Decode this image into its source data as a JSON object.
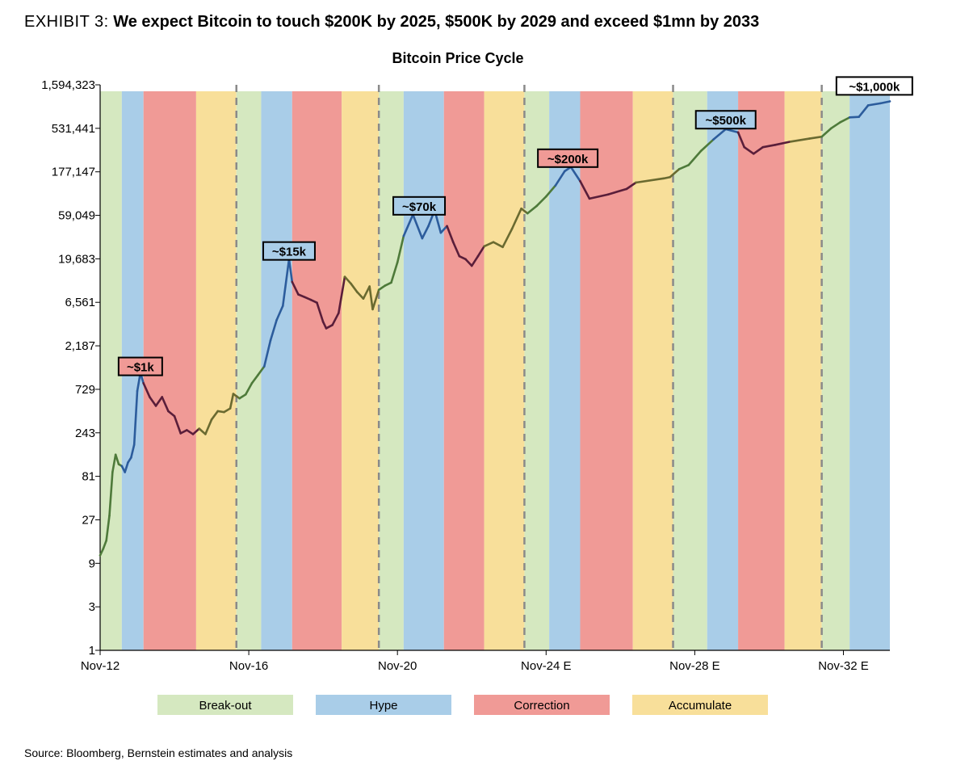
{
  "exhibit": {
    "label": "EXHIBIT 3:",
    "title": "We expect Bitcoin to touch $200K by 2025, $500K by 2029 and exceed $1mn by 2033"
  },
  "source": "Source: Bloomberg, Bernstein estimates and analysis",
  "chart_data": {
    "type": "line",
    "title": "Bitcoin Price Cycle",
    "xlabel": "",
    "ylabel": "",
    "y_scale": "log3",
    "ylim": [
      1,
      1594323
    ],
    "y_ticks": [
      {
        "value": 1,
        "label": "1"
      },
      {
        "value": 3,
        "label": "3"
      },
      {
        "value": 9,
        "label": "9"
      },
      {
        "value": 27,
        "label": "27"
      },
      {
        "value": 81,
        "label": "81"
      },
      {
        "value": 243,
        "label": "243"
      },
      {
        "value": 729,
        "label": "729"
      },
      {
        "value": 2187,
        "label": "2,187"
      },
      {
        "value": 6561,
        "label": "6,561"
      },
      {
        "value": 19683,
        "label": "19,683"
      },
      {
        "value": 59049,
        "label": "59,049"
      },
      {
        "value": 177147,
        "label": "177,147"
      },
      {
        "value": 531441,
        "label": "531,441"
      },
      {
        "value": 1594323,
        "label": "1,594,323"
      }
    ],
    "xlim": [
      "2012-11",
      "2034-02"
    ],
    "x_ticks": [
      {
        "value": "2012-11",
        "label": "Nov-12"
      },
      {
        "value": "2016-11",
        "label": "Nov-16"
      },
      {
        "value": "2020-11",
        "label": "Nov-20"
      },
      {
        "value": "2024-11",
        "label": "Nov-24 E"
      },
      {
        "value": "2028-11",
        "label": "Nov-28 E"
      },
      {
        "value": "2032-11",
        "label": "Nov-32 E"
      }
    ],
    "halving_lines": [
      "2016-07",
      "2020-05",
      "2024-04",
      "2028-04",
      "2032-04"
    ],
    "phase_colors": {
      "Break-out": "#d5e8c0",
      "Hype": "#a9cde8",
      "Correction": "#f09a96",
      "Accumulate": "#f8df9a"
    },
    "line_colors": {
      "Break-out": "#4e7a3a",
      "Hype": "#2c5c9c",
      "Correction": "#5a1e3a",
      "Accumulate": "#6a6a30"
    },
    "phases": [
      {
        "phase": "Break-out",
        "start": "2012-11",
        "end": "2013-06"
      },
      {
        "phase": "Hype",
        "start": "2013-06",
        "end": "2014-01"
      },
      {
        "phase": "Correction",
        "start": "2014-01",
        "end": "2015-06"
      },
      {
        "phase": "Accumulate",
        "start": "2015-06",
        "end": "2016-07"
      },
      {
        "phase": "Break-out",
        "start": "2016-07",
        "end": "2017-03"
      },
      {
        "phase": "Hype",
        "start": "2017-03",
        "end": "2018-01"
      },
      {
        "phase": "Correction",
        "start": "2018-01",
        "end": "2019-05"
      },
      {
        "phase": "Accumulate",
        "start": "2019-05",
        "end": "2020-05"
      },
      {
        "phase": "Break-out",
        "start": "2020-05",
        "end": "2021-01"
      },
      {
        "phase": "Hype",
        "start": "2021-01",
        "end": "2022-02"
      },
      {
        "phase": "Correction",
        "start": "2022-02",
        "end": "2023-03"
      },
      {
        "phase": "Accumulate",
        "start": "2023-03",
        "end": "2024-04"
      },
      {
        "phase": "Break-out",
        "start": "2024-04",
        "end": "2024-12"
      },
      {
        "phase": "Hype",
        "start": "2024-12",
        "end": "2025-10"
      },
      {
        "phase": "Correction",
        "start": "2025-10",
        "end": "2027-03"
      },
      {
        "phase": "Accumulate",
        "start": "2027-03",
        "end": "2028-04"
      },
      {
        "phase": "Break-out",
        "start": "2028-04",
        "end": "2029-03"
      },
      {
        "phase": "Hype",
        "start": "2029-03",
        "end": "2030-01"
      },
      {
        "phase": "Correction",
        "start": "2030-01",
        "end": "2031-04"
      },
      {
        "phase": "Accumulate",
        "start": "2031-04",
        "end": "2032-04"
      },
      {
        "phase": "Break-out",
        "start": "2032-04",
        "end": "2033-01"
      },
      {
        "phase": "Hype",
        "start": "2033-01",
        "end": "2034-02"
      }
    ],
    "series": [
      {
        "points": [
          [
            "2012-11",
            11
          ],
          [
            "2012-12",
            13
          ],
          [
            "2013-01",
            16
          ],
          [
            "2013-02",
            30
          ],
          [
            "2013-03",
            90
          ],
          [
            "2013-04",
            140
          ],
          [
            "2013-05",
            110
          ],
          [
            "2013-06",
            105
          ],
          [
            "2013-07",
            90
          ],
          [
            "2013-08",
            115
          ],
          [
            "2013-09",
            130
          ],
          [
            "2013-10",
            180
          ],
          [
            "2013-11",
            700
          ],
          [
            "2013-12",
            1100
          ],
          [
            "2014-01",
            850
          ],
          [
            "2014-03",
            600
          ],
          [
            "2014-05",
            480
          ],
          [
            "2014-07",
            600
          ],
          [
            "2014-09",
            420
          ],
          [
            "2014-11",
            370
          ],
          [
            "2015-01",
            240
          ],
          [
            "2015-03",
            260
          ],
          [
            "2015-05",
            235
          ],
          [
            "2015-07",
            270
          ],
          [
            "2015-09",
            235
          ],
          [
            "2015-11",
            340
          ],
          [
            "2016-01",
            420
          ],
          [
            "2016-03",
            410
          ],
          [
            "2016-05",
            450
          ],
          [
            "2016-06",
            650
          ],
          [
            "2016-08",
            580
          ],
          [
            "2016-10",
            640
          ],
          [
            "2016-12",
            850
          ],
          [
            "2017-02",
            1050
          ],
          [
            "2017-04",
            1300
          ],
          [
            "2017-06",
            2500
          ],
          [
            "2017-08",
            4200
          ],
          [
            "2017-10",
            6000
          ],
          [
            "2017-12",
            19500
          ],
          [
            "2018-01",
            11000
          ],
          [
            "2018-03",
            8000
          ],
          [
            "2018-05",
            7500
          ],
          [
            "2018-07",
            7000
          ],
          [
            "2018-09",
            6500
          ],
          [
            "2018-11",
            4000
          ],
          [
            "2018-12",
            3400
          ],
          [
            "2019-02",
            3700
          ],
          [
            "2019-04",
            5000
          ],
          [
            "2019-06",
            12500
          ],
          [
            "2019-08",
            10500
          ],
          [
            "2019-10",
            8500
          ],
          [
            "2019-12",
            7200
          ],
          [
            "2020-02",
            9800
          ],
          [
            "2020-03",
            5500
          ],
          [
            "2020-05",
            9000
          ],
          [
            "2020-07",
            10000
          ],
          [
            "2020-09",
            10800
          ],
          [
            "2020-11",
            18000
          ],
          [
            "2021-01",
            35000
          ],
          [
            "2021-04",
            60000
          ],
          [
            "2021-07",
            33000
          ],
          [
            "2021-09",
            45000
          ],
          [
            "2021-11",
            67000
          ],
          [
            "2022-01",
            38000
          ],
          [
            "2022-03",
            45000
          ],
          [
            "2022-05",
            30000
          ],
          [
            "2022-07",
            21000
          ],
          [
            "2022-09",
            19500
          ],
          [
            "2022-11",
            16500
          ],
          [
            "2023-01",
            21000
          ],
          [
            "2023-03",
            27000
          ],
          [
            "2023-06",
            30000
          ],
          [
            "2023-09",
            26500
          ],
          [
            "2023-12",
            42000
          ],
          [
            "2024-03",
            70000
          ],
          [
            "2024-05",
            62000
          ],
          [
            "2024-08",
            75000
          ],
          [
            "2024-11",
            95000
          ],
          [
            "2025-02",
            125000
          ],
          [
            "2025-05",
            180000
          ],
          [
            "2025-07",
            200000
          ],
          [
            "2025-10",
            140000
          ],
          [
            "2026-01",
            90000
          ],
          [
            "2026-07",
            100000
          ],
          [
            "2027-01",
            115000
          ],
          [
            "2027-04",
            135000
          ],
          [
            "2028-01",
            150000
          ],
          [
            "2028-03",
            155000
          ],
          [
            "2028-06",
            190000
          ],
          [
            "2028-09",
            210000
          ],
          [
            "2029-01",
            300000
          ],
          [
            "2029-05",
            400000
          ],
          [
            "2029-09",
            520000
          ],
          [
            "2030-01",
            480000
          ],
          [
            "2030-03",
            330000
          ],
          [
            "2030-06",
            280000
          ],
          [
            "2030-09",
            330000
          ],
          [
            "2031-01",
            350000
          ],
          [
            "2031-06",
            380000
          ],
          [
            "2031-12",
            410000
          ],
          [
            "2032-04",
            430000
          ],
          [
            "2032-07",
            530000
          ],
          [
            "2032-10",
            620000
          ],
          [
            "2033-01",
            700000
          ],
          [
            "2033-04",
            710000
          ],
          [
            "2033-07",
            950000
          ],
          [
            "2033-11",
            1000000
          ],
          [
            "2034-02",
            1050000
          ]
        ]
      }
    ],
    "annotations": [
      {
        "text": "~$1k",
        "x": "2013-12",
        "y": 1300,
        "phase": "Correction"
      },
      {
        "text": "~$15k",
        "x": "2017-12",
        "y": 24000,
        "phase": "Hype"
      },
      {
        "text": "~$70k",
        "x": "2021-06",
        "y": 75000,
        "phase": "Hype"
      },
      {
        "text": "~$200k",
        "x": "2025-06",
        "y": 250000,
        "phase": "Correction"
      },
      {
        "text": "~$500k",
        "x": "2029-09",
        "y": 660000,
        "phase": "Hype"
      },
      {
        "text": "~$1,000k",
        "x": "2033-09",
        "y": 1550000,
        "phase": "none"
      }
    ],
    "legend": {
      "position": "bottom",
      "items": [
        {
          "label": "Break-out",
          "color": "#d5e8c0"
        },
        {
          "label": "Hype",
          "color": "#a9cde8"
        },
        {
          "label": "Correction",
          "color": "#f09a96"
        },
        {
          "label": "Accumulate",
          "color": "#f8df9a"
        }
      ]
    }
  }
}
